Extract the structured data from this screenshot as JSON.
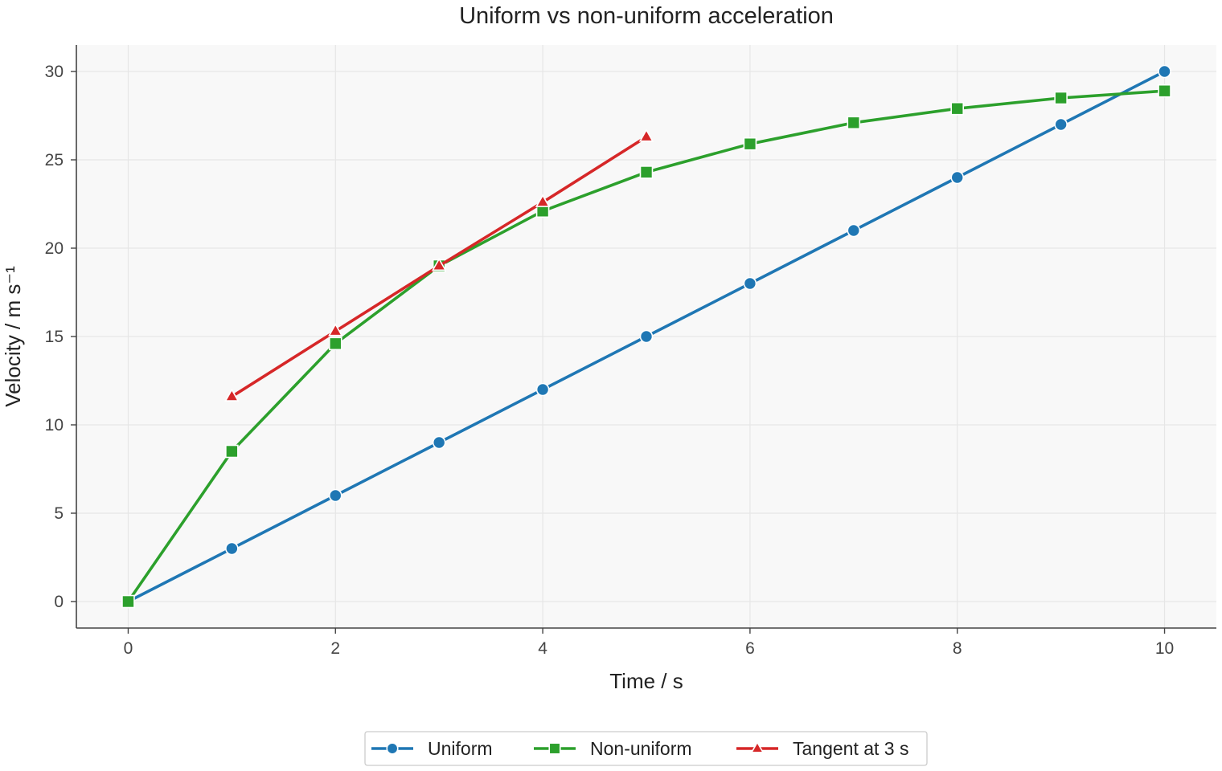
{
  "chart_data": {
    "type": "line",
    "title": "Uniform vs non-uniform acceleration",
    "xlabel": "Time / s",
    "ylabel": "Velocity / m s⁻¹",
    "xlim": [
      -0.5,
      10.5
    ],
    "ylim": [
      -1.5,
      31.5
    ],
    "xticks": [
      0,
      2,
      4,
      6,
      8,
      10
    ],
    "xtick_labels": [
      "0",
      "2",
      "4",
      "6",
      "8",
      "10"
    ],
    "yticks": [
      0,
      5,
      10,
      15,
      20,
      25,
      30
    ],
    "ytick_labels": [
      "0",
      "5",
      "10",
      "15",
      "20",
      "25",
      "30"
    ],
    "grid": true,
    "legend_position": "bottom-center",
    "series": [
      {
        "name": "Uniform",
        "color": "#1f77b4",
        "marker": "circle",
        "x": [
          0,
          1,
          2,
          3,
          4,
          5,
          6,
          7,
          8,
          9,
          10
        ],
        "y": [
          0,
          3,
          6,
          9,
          12,
          15,
          18,
          21,
          24,
          27,
          30
        ]
      },
      {
        "name": "Non-uniform",
        "color": "#2ca02c",
        "marker": "square",
        "x": [
          0,
          1,
          2,
          3,
          4,
          5,
          6,
          7,
          8,
          9,
          10
        ],
        "y": [
          0,
          8.5,
          14.6,
          19.0,
          22.1,
          24.3,
          25.9,
          27.1,
          27.9,
          28.5,
          28.9
        ]
      },
      {
        "name": "Tangent at 3 s",
        "color": "#d62728",
        "marker": "triangle",
        "x": [
          1,
          2,
          3,
          4,
          5
        ],
        "y": [
          11.6,
          15.3,
          19.0,
          22.6,
          26.3
        ]
      }
    ]
  }
}
